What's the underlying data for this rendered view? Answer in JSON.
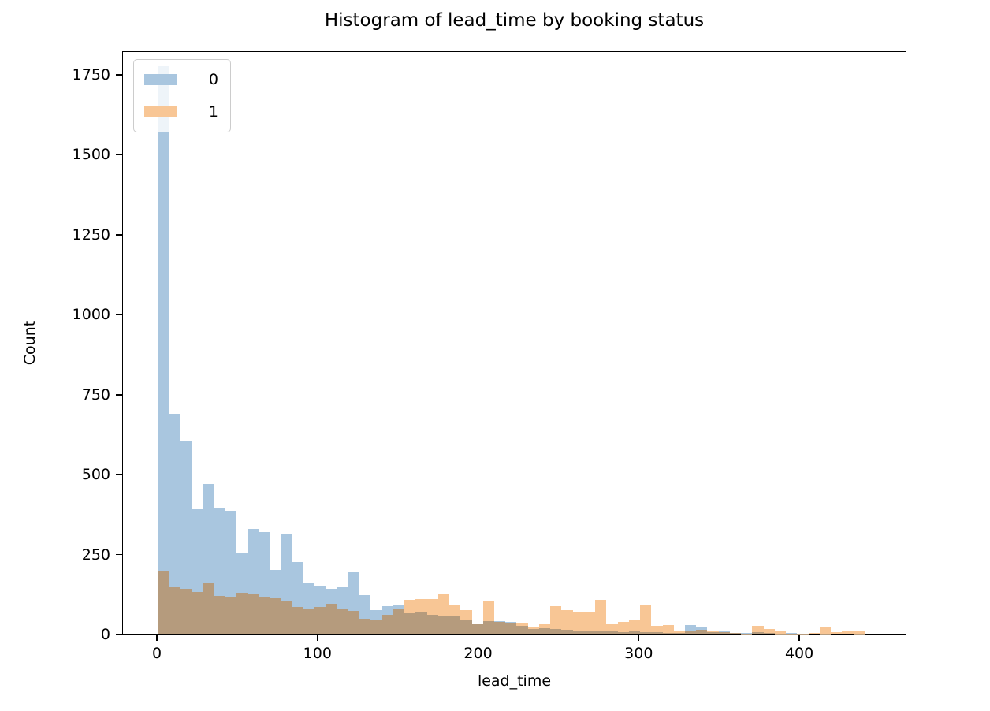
{
  "figure": {
    "background": "#ffffff",
    "axes_color": "#000000",
    "text_color": "#000000"
  },
  "chart_data": {
    "type": "bar",
    "variant": "overlaid histogram (two semi-transparent count histograms)",
    "title": "Histogram of lead_time by booking status",
    "xlabel": "lead_time",
    "ylabel": "Count",
    "grid": false,
    "legend_position": "upper left",
    "bin_start": 0,
    "bin_width": 7,
    "xlim": [
      -21.6,
      466.7
    ],
    "ylim": [
      0,
      1824
    ],
    "x_ticks": [
      0,
      100,
      200,
      300,
      400
    ],
    "y_ticks": [
      0,
      250,
      500,
      750,
      1000,
      1250,
      1500,
      1750
    ],
    "overlap_color": "#b59b7d",
    "series": [
      {
        "name": "0",
        "color": "#a9c6df",
        "values": [
          1780,
          690,
          605,
          390,
          470,
          395,
          385,
          255,
          330,
          320,
          200,
          315,
          225,
          158,
          152,
          140,
          145,
          192,
          120,
          75,
          86,
          88,
          65,
          70,
          60,
          58,
          55,
          45,
          32,
          40,
          40,
          38,
          25,
          15,
          18,
          15,
          12,
          10,
          8,
          10,
          8,
          6,
          10,
          5,
          4,
          3,
          3,
          28,
          22,
          4,
          8,
          3,
          2,
          6,
          2,
          1,
          2,
          1,
          0,
          1,
          0,
          0,
          1
        ]
      },
      {
        "name": "1",
        "color": "#f8c695",
        "values": [
          195,
          145,
          140,
          130,
          158,
          118,
          113,
          128,
          124,
          116,
          112,
          104,
          83,
          79,
          85,
          95,
          80,
          72,
          48,
          45,
          60,
          80,
          107,
          108,
          110,
          127,
          91,
          73,
          32,
          102,
          37,
          35,
          35,
          19,
          30,
          87,
          75,
          67,
          70,
          107,
          33,
          37,
          45,
          90,
          25,
          28,
          8,
          10,
          12,
          8,
          5,
          3,
          1,
          26,
          15,
          11,
          1,
          1,
          2,
          23,
          4,
          7,
          7
        ]
      }
    ]
  }
}
